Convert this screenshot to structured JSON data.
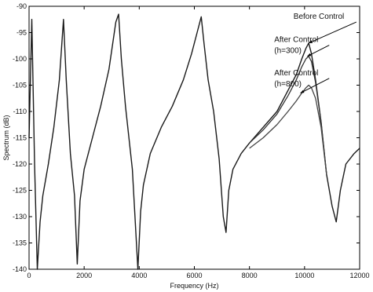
{
  "chart_data": {
    "type": "line",
    "title": "",
    "xlabel": "Frequency (Hz)",
    "ylabel": "Spectrum (dB)",
    "xlim": [
      0,
      12000
    ],
    "ylim": [
      -140,
      -90
    ],
    "xticks": [
      0,
      2000,
      4000,
      6000,
      8000,
      10000,
      12000
    ],
    "yticks": [
      -90,
      -95,
      -100,
      -105,
      -110,
      -115,
      -120,
      -125,
      -130,
      -135,
      -140
    ],
    "grid": false,
    "legend": "none",
    "series": [
      {
        "name": "Before Control",
        "x": [
          0,
          100,
          200,
          300,
          400,
          500,
          700,
          900,
          1100,
          1250,
          1350,
          1500,
          1650,
          1750,
          1850,
          2000,
          2300,
          2600,
          2900,
          3150,
          3250,
          3350,
          3500,
          3750,
          3950,
          4050,
          4150,
          4400,
          4800,
          5200,
          5600,
          5900,
          6100,
          6250,
          6350,
          6500,
          6700,
          6900,
          7050,
          7150,
          7250,
          7400,
          7700,
          8000,
          8500,
          9000,
          9400,
          9700,
          9900,
          10050,
          10150,
          10250,
          10400,
          10600,
          10800,
          11000,
          11150,
          11300,
          11500,
          11800,
          12000
        ],
        "y": [
          -115,
          -92.5,
          -120,
          -140,
          -131,
          -126,
          -120,
          -113,
          -104,
          -92.5,
          -104,
          -118,
          -126,
          -139,
          -127,
          -121,
          -115,
          -109,
          -102,
          -93,
          -91.5,
          -100,
          -109,
          -121,
          -140,
          -129,
          -124,
          -118,
          -113,
          -109,
          -104,
          -99,
          -95,
          -92,
          -97,
          -104,
          -110,
          -119,
          -130,
          -133,
          -125,
          -121,
          -118,
          -116,
          -113,
          -110,
          -106,
          -103,
          -100,
          -98,
          -97,
          -99,
          -104,
          -112,
          -122,
          -128,
          -131,
          -125,
          -120,
          -118,
          -117
        ]
      },
      {
        "name": "After Control (h=300)",
        "x": [
          8000,
          8500,
          9000,
          9400,
          9700,
          9900,
          10050,
          10150,
          10250,
          10400,
          10600,
          10800
        ],
        "y": [
          -116,
          -113.5,
          -110.5,
          -107,
          -104,
          -101.5,
          -100,
          -99.5,
          -100.5,
          -104.5,
          -112,
          -122
        ]
      },
      {
        "name": "After Control (h=800)",
        "x": [
          8000,
          8500,
          9000,
          9400,
          9700,
          9900,
          10050,
          10150,
          10250,
          10400,
          10600,
          10800
        ],
        "y": [
          -117,
          -115,
          -112.5,
          -110,
          -108,
          -106.5,
          -105.5,
          -105,
          -105.5,
          -107.5,
          -113,
          -122
        ]
      }
    ],
    "annotations": [
      {
        "text": "Before Control",
        "x": 9600,
        "y": -92.4,
        "target_x": 10150,
        "target_y": -97
      },
      {
        "text": "After Control",
        "x": 8900,
        "y": -96.8,
        "target_x": 10100,
        "target_y": -99.5
      },
      {
        "text": "(h=300)",
        "x": 8900,
        "y": -98.9,
        "target_x": null,
        "target_y": null
      },
      {
        "text": "After Control",
        "x": 8900,
        "y": -103.1,
        "target_x": 9850,
        "target_y": -106.5
      },
      {
        "text": "(h=800)",
        "x": 8900,
        "y": -105.2,
        "target_x": null,
        "target_y": null
      }
    ]
  }
}
